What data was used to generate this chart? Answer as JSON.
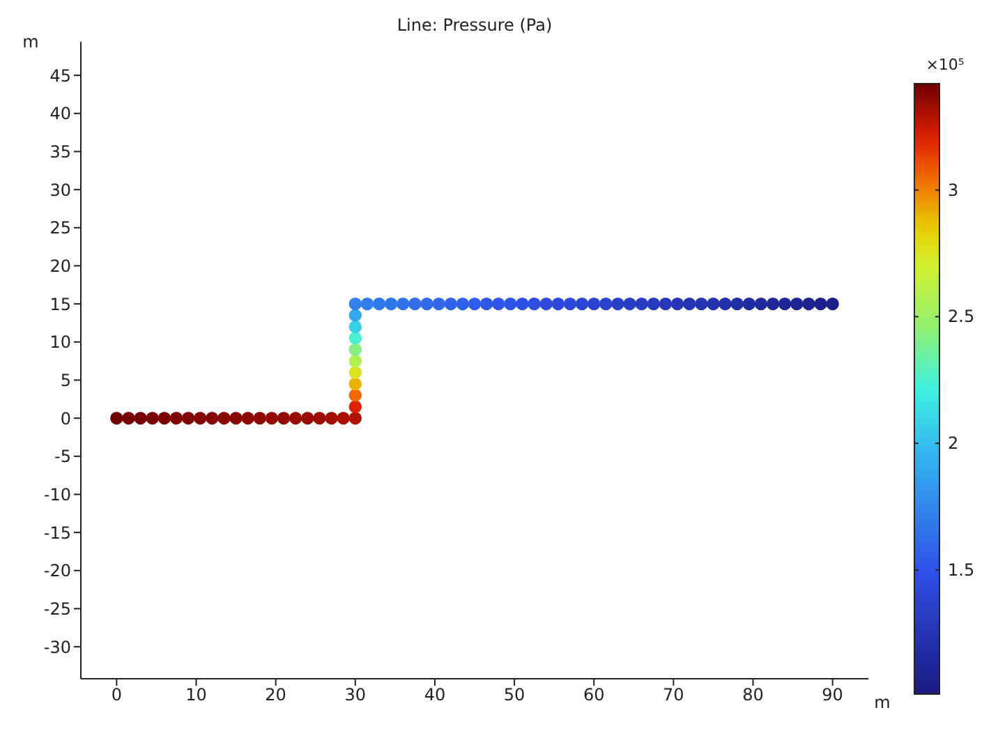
{
  "chart_data": {
    "type": "scatter",
    "title": "Line: Pressure (Pa)",
    "xlabel": "m",
    "ylabel": "m",
    "clabel": "×10⁵",
    "xlim": [
      -4.5,
      94.5
    ],
    "xticks": [
      0,
      10,
      20,
      30,
      40,
      50,
      60,
      70,
      80,
      90
    ],
    "ylim": [
      -34.2,
      49.4
    ],
    "yticks": [
      -30,
      -25,
      -20,
      -15,
      -10,
      -5,
      0,
      5,
      10,
      15,
      20,
      25,
      30,
      35,
      40,
      45
    ],
    "clim": [
      1.01,
      3.42
    ],
    "cticks": [
      1.5,
      2,
      2.5,
      3
    ],
    "series": [
      {
        "x": [
          0,
          1.5,
          3,
          4.5,
          6,
          7.5,
          9,
          10.5,
          12,
          13.5,
          15,
          16.5,
          18,
          19.5,
          21,
          22.5,
          24,
          25.5,
          27,
          28.5,
          30,
          30,
          30,
          30,
          30,
          30,
          30,
          30,
          30,
          30,
          30,
          31.5,
          33,
          34.5,
          36,
          37.5,
          39,
          40.5,
          42,
          43.5,
          45,
          46.5,
          48,
          49.5,
          51,
          52.5,
          54,
          55.5,
          57,
          58.5,
          60,
          61.5,
          63,
          64.5,
          66,
          67.5,
          69,
          70.5,
          72,
          73.5,
          75,
          76.5,
          78,
          79.5,
          81,
          82.5,
          84,
          85.5,
          87,
          88.5,
          90
        ],
        "values": [
          0,
          0,
          0,
          0,
          0,
          0,
          0,
          0,
          0,
          0,
          0,
          0,
          0,
          0,
          0,
          0,
          0,
          0,
          0,
          0,
          0,
          1.5,
          3,
          4.5,
          6,
          7.5,
          9,
          10.5,
          12,
          13.5,
          15,
          15,
          15,
          15,
          15,
          15,
          15,
          15,
          15,
          15,
          15,
          15,
          15,
          15,
          15,
          15,
          15,
          15,
          15,
          15,
          15,
          15,
          15,
          15,
          15,
          15,
          15,
          15,
          15,
          15,
          15,
          15,
          15,
          15,
          15,
          15,
          15,
          15,
          15,
          15,
          15
        ],
        "cvalues": [
          3.42,
          3.41,
          3.41,
          3.4,
          3.4,
          3.39,
          3.39,
          3.38,
          3.38,
          3.37,
          3.37,
          3.36,
          3.36,
          3.35,
          3.35,
          3.34,
          3.34,
          3.33,
          3.32,
          3.31,
          3.3,
          3.2,
          3.05,
          2.9,
          2.75,
          2.58,
          2.42,
          2.25,
          2.08,
          1.9,
          1.72,
          1.7,
          1.68,
          1.67,
          1.65,
          1.63,
          1.62,
          1.6,
          1.58,
          1.57,
          1.55,
          1.53,
          1.52,
          1.5,
          1.48,
          1.47,
          1.45,
          1.43,
          1.42,
          1.4,
          1.38,
          1.37,
          1.35,
          1.33,
          1.32,
          1.3,
          1.28,
          1.27,
          1.25,
          1.23,
          1.22,
          1.2,
          1.18,
          1.17,
          1.15,
          1.13,
          1.12,
          1.1,
          1.08,
          1.07,
          1.05
        ]
      }
    ]
  }
}
